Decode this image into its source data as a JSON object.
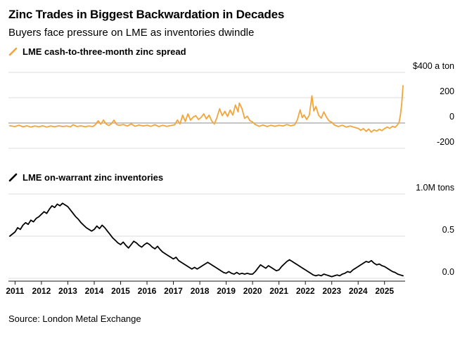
{
  "header": {
    "title": "Zinc Trades in Biggest Backwardation in Decades",
    "subtitle": "Buyers face pressure on LME as inventories dwindle"
  },
  "footer": {
    "source": "Source: London Metal Exchange"
  },
  "x_axis": {
    "range": [
      2010.75,
      2025.78
    ],
    "ticks": [
      2011,
      2012,
      2013,
      2014,
      2015,
      2016,
      2017,
      2018,
      2019,
      2020,
      2021,
      2022,
      2023,
      2024,
      2025
    ]
  },
  "chart_data": [
    {
      "type": "line",
      "name": "LME cash-to-three-month zinc spread",
      "color": "#F3A43B",
      "ylim": [
        -300,
        430
      ],
      "yticks": [
        {
          "v": 400,
          "label": "$400 a ton"
        },
        {
          "v": 200,
          "label": "200"
        },
        {
          "v": 0,
          "label": "0",
          "emphasis": true
        },
        {
          "v": -200,
          "label": "-200"
        }
      ],
      "points": [
        [
          2010.8,
          -22
        ],
        [
          2011,
          -28
        ],
        [
          2011.15,
          -18
        ],
        [
          2011.3,
          -30
        ],
        [
          2011.45,
          -22
        ],
        [
          2011.6,
          -32
        ],
        [
          2011.75,
          -24
        ],
        [
          2011.9,
          -30
        ],
        [
          2012.05,
          -22
        ],
        [
          2012.2,
          -32
        ],
        [
          2012.35,
          -24
        ],
        [
          2012.5,
          -30
        ],
        [
          2012.65,
          -22
        ],
        [
          2012.8,
          -28
        ],
        [
          2012.95,
          -24
        ],
        [
          2013.1,
          -30
        ],
        [
          2013.2,
          -14
        ],
        [
          2013.35,
          -28
        ],
        [
          2013.5,
          -22
        ],
        [
          2013.65,
          -30
        ],
        [
          2013.8,
          -24
        ],
        [
          2013.95,
          -28
        ],
        [
          2014.05,
          -12
        ],
        [
          2014.15,
          18
        ],
        [
          2014.25,
          -10
        ],
        [
          2014.35,
          24
        ],
        [
          2014.45,
          -8
        ],
        [
          2014.55,
          -20
        ],
        [
          2014.65,
          -6
        ],
        [
          2014.75,
          22
        ],
        [
          2014.85,
          -12
        ],
        [
          2014.95,
          -18
        ],
        [
          2015.1,
          -12
        ],
        [
          2015.25,
          -24
        ],
        [
          2015.4,
          -8
        ],
        [
          2015.55,
          -26
        ],
        [
          2015.7,
          -16
        ],
        [
          2015.85,
          -24
        ],
        [
          2016,
          -18
        ],
        [
          2016.15,
          -26
        ],
        [
          2016.3,
          -14
        ],
        [
          2016.45,
          -28
        ],
        [
          2016.6,
          -18
        ],
        [
          2016.75,
          -26
        ],
        [
          2016.9,
          -20
        ],
        [
          2017.05,
          -14
        ],
        [
          2017.15,
          24
        ],
        [
          2017.25,
          -8
        ],
        [
          2017.35,
          62
        ],
        [
          2017.45,
          12
        ],
        [
          2017.55,
          72
        ],
        [
          2017.65,
          22
        ],
        [
          2017.75,
          48
        ],
        [
          2017.85,
          58
        ],
        [
          2017.95,
          28
        ],
        [
          2018.05,
          44
        ],
        [
          2018.15,
          72
        ],
        [
          2018.25,
          32
        ],
        [
          2018.35,
          62
        ],
        [
          2018.45,
          18
        ],
        [
          2018.55,
          -8
        ],
        [
          2018.65,
          42
        ],
        [
          2018.75,
          112
        ],
        [
          2018.85,
          58
        ],
        [
          2018.95,
          92
        ],
        [
          2019.05,
          52
        ],
        [
          2019.15,
          102
        ],
        [
          2019.25,
          62
        ],
        [
          2019.35,
          142
        ],
        [
          2019.45,
          88
        ],
        [
          2019.5,
          158
        ],
        [
          2019.6,
          112
        ],
        [
          2019.7,
          36
        ],
        [
          2019.8,
          54
        ],
        [
          2019.9,
          18
        ],
        [
          2020,
          8
        ],
        [
          2020.1,
          -12
        ],
        [
          2020.25,
          -26
        ],
        [
          2020.4,
          -16
        ],
        [
          2020.55,
          -28
        ],
        [
          2020.7,
          -18
        ],
        [
          2020.85,
          -26
        ],
        [
          2021,
          -18
        ],
        [
          2021.15,
          -24
        ],
        [
          2021.3,
          -12
        ],
        [
          2021.45,
          -22
        ],
        [
          2021.6,
          -14
        ],
        [
          2021.7,
          28
        ],
        [
          2021.8,
          104
        ],
        [
          2021.88,
          42
        ],
        [
          2021.95,
          64
        ],
        [
          2022.05,
          28
        ],
        [
          2022.15,
          62
        ],
        [
          2022.25,
          215
        ],
        [
          2022.32,
          95
        ],
        [
          2022.4,
          130
        ],
        [
          2022.5,
          62
        ],
        [
          2022.6,
          38
        ],
        [
          2022.7,
          88
        ],
        [
          2022.8,
          46
        ],
        [
          2022.9,
          16
        ],
        [
          2023,
          6
        ],
        [
          2023.1,
          -16
        ],
        [
          2023.25,
          -28
        ],
        [
          2023.4,
          -18
        ],
        [
          2023.55,
          -32
        ],
        [
          2023.7,
          -24
        ],
        [
          2023.85,
          -34
        ],
        [
          2024,
          -42
        ],
        [
          2024.1,
          -58
        ],
        [
          2024.2,
          -44
        ],
        [
          2024.3,
          -66
        ],
        [
          2024.4,
          -48
        ],
        [
          2024.5,
          -72
        ],
        [
          2024.6,
          -54
        ],
        [
          2024.7,
          -64
        ],
        [
          2024.8,
          -50
        ],
        [
          2024.9,
          -60
        ],
        [
          2025,
          -44
        ],
        [
          2025.1,
          -32
        ],
        [
          2025.2,
          -42
        ],
        [
          2025.3,
          -26
        ],
        [
          2025.4,
          -34
        ],
        [
          2025.48,
          -18
        ],
        [
          2025.55,
          6
        ],
        [
          2025.6,
          60
        ],
        [
          2025.65,
          150
        ],
        [
          2025.7,
          295
        ]
      ]
    },
    {
      "type": "line",
      "name": "LME on-warrant zinc inventories",
      "color": "#000000",
      "ylim": [
        0,
        1.05
      ],
      "yticks": [
        {
          "v": 1.0,
          "label": "1.0M tons"
        },
        {
          "v": 0.5,
          "label": "0.5"
        },
        {
          "v": 0.0,
          "label": "0.0"
        }
      ],
      "points": [
        [
          2010.8,
          0.5
        ],
        [
          2011,
          0.55
        ],
        [
          2011.1,
          0.6
        ],
        [
          2011.2,
          0.58
        ],
        [
          2011.3,
          0.63
        ],
        [
          2011.4,
          0.66
        ],
        [
          2011.5,
          0.64
        ],
        [
          2011.6,
          0.69
        ],
        [
          2011.7,
          0.67
        ],
        [
          2011.8,
          0.71
        ],
        [
          2011.9,
          0.73
        ],
        [
          2012,
          0.76
        ],
        [
          2012.1,
          0.79
        ],
        [
          2012.2,
          0.77
        ],
        [
          2012.3,
          0.82
        ],
        [
          2012.4,
          0.86
        ],
        [
          2012.5,
          0.84
        ],
        [
          2012.6,
          0.88
        ],
        [
          2012.7,
          0.86
        ],
        [
          2012.8,
          0.89
        ],
        [
          2012.9,
          0.87
        ],
        [
          2013,
          0.85
        ],
        [
          2013.1,
          0.81
        ],
        [
          2013.2,
          0.77
        ],
        [
          2013.3,
          0.73
        ],
        [
          2013.4,
          0.7
        ],
        [
          2013.5,
          0.66
        ],
        [
          2013.6,
          0.63
        ],
        [
          2013.7,
          0.6
        ],
        [
          2013.8,
          0.58
        ],
        [
          2013.9,
          0.56
        ],
        [
          2014,
          0.58
        ],
        [
          2014.1,
          0.62
        ],
        [
          2014.2,
          0.59
        ],
        [
          2014.3,
          0.63
        ],
        [
          2014.4,
          0.6
        ],
        [
          2014.5,
          0.56
        ],
        [
          2014.6,
          0.52
        ],
        [
          2014.7,
          0.48
        ],
        [
          2014.8,
          0.45
        ],
        [
          2014.9,
          0.42
        ],
        [
          2015,
          0.4
        ],
        [
          2015.1,
          0.43
        ],
        [
          2015.2,
          0.39
        ],
        [
          2015.3,
          0.36
        ],
        [
          2015.4,
          0.4
        ],
        [
          2015.5,
          0.44
        ],
        [
          2015.6,
          0.42
        ],
        [
          2015.7,
          0.39
        ],
        [
          2015.8,
          0.37
        ],
        [
          2015.9,
          0.4
        ],
        [
          2016,
          0.42
        ],
        [
          2016.1,
          0.4
        ],
        [
          2016.2,
          0.37
        ],
        [
          2016.3,
          0.35
        ],
        [
          2016.4,
          0.38
        ],
        [
          2016.5,
          0.34
        ],
        [
          2016.6,
          0.31
        ],
        [
          2016.7,
          0.29
        ],
        [
          2016.8,
          0.27
        ],
        [
          2016.9,
          0.25
        ],
        [
          2017,
          0.23
        ],
        [
          2017.1,
          0.25
        ],
        [
          2017.2,
          0.21
        ],
        [
          2017.3,
          0.19
        ],
        [
          2017.4,
          0.17
        ],
        [
          2017.5,
          0.15
        ],
        [
          2017.6,
          0.13
        ],
        [
          2017.7,
          0.11
        ],
        [
          2017.8,
          0.13
        ],
        [
          2017.9,
          0.11
        ],
        [
          2018,
          0.13
        ],
        [
          2018.1,
          0.15
        ],
        [
          2018.2,
          0.17
        ],
        [
          2018.3,
          0.19
        ],
        [
          2018.4,
          0.17
        ],
        [
          2018.5,
          0.15
        ],
        [
          2018.6,
          0.13
        ],
        [
          2018.7,
          0.11
        ],
        [
          2018.8,
          0.09
        ],
        [
          2018.9,
          0.07
        ],
        [
          2019,
          0.06
        ],
        [
          2019.1,
          0.08
        ],
        [
          2019.2,
          0.06
        ],
        [
          2019.3,
          0.05
        ],
        [
          2019.4,
          0.07
        ],
        [
          2019.5,
          0.05
        ],
        [
          2019.6,
          0.06
        ],
        [
          2019.7,
          0.05
        ],
        [
          2019.8,
          0.06
        ],
        [
          2019.9,
          0.05
        ],
        [
          2020,
          0.05
        ],
        [
          2020.1,
          0.08
        ],
        [
          2020.2,
          0.12
        ],
        [
          2020.3,
          0.16
        ],
        [
          2020.4,
          0.14
        ],
        [
          2020.5,
          0.12
        ],
        [
          2020.6,
          0.15
        ],
        [
          2020.7,
          0.13
        ],
        [
          2020.8,
          0.11
        ],
        [
          2020.9,
          0.09
        ],
        [
          2021,
          0.1
        ],
        [
          2021.1,
          0.14
        ],
        [
          2021.2,
          0.17
        ],
        [
          2021.3,
          0.2
        ],
        [
          2021.4,
          0.22
        ],
        [
          2021.5,
          0.2
        ],
        [
          2021.6,
          0.18
        ],
        [
          2021.7,
          0.16
        ],
        [
          2021.8,
          0.14
        ],
        [
          2021.9,
          0.12
        ],
        [
          2022,
          0.1
        ],
        [
          2022.1,
          0.08
        ],
        [
          2022.2,
          0.06
        ],
        [
          2022.3,
          0.04
        ],
        [
          2022.4,
          0.03
        ],
        [
          2022.5,
          0.04
        ],
        [
          2022.6,
          0.03
        ],
        [
          2022.7,
          0.05
        ],
        [
          2022.8,
          0.04
        ],
        [
          2022.9,
          0.03
        ],
        [
          2023,
          0.02
        ],
        [
          2023.1,
          0.03
        ],
        [
          2023.2,
          0.04
        ],
        [
          2023.3,
          0.03
        ],
        [
          2023.4,
          0.05
        ],
        [
          2023.5,
          0.06
        ],
        [
          2023.6,
          0.08
        ],
        [
          2023.7,
          0.07
        ],
        [
          2023.8,
          0.1
        ],
        [
          2023.9,
          0.12
        ],
        [
          2024,
          0.14
        ],
        [
          2024.1,
          0.16
        ],
        [
          2024.2,
          0.18
        ],
        [
          2024.3,
          0.2
        ],
        [
          2024.4,
          0.19
        ],
        [
          2024.5,
          0.21
        ],
        [
          2024.6,
          0.18
        ],
        [
          2024.7,
          0.16
        ],
        [
          2024.8,
          0.17
        ],
        [
          2024.9,
          0.15
        ],
        [
          2025,
          0.14
        ],
        [
          2025.1,
          0.12
        ],
        [
          2025.2,
          0.1
        ],
        [
          2025.3,
          0.08
        ],
        [
          2025.4,
          0.07
        ],
        [
          2025.5,
          0.05
        ],
        [
          2025.6,
          0.04
        ],
        [
          2025.7,
          0.03
        ]
      ]
    }
  ]
}
